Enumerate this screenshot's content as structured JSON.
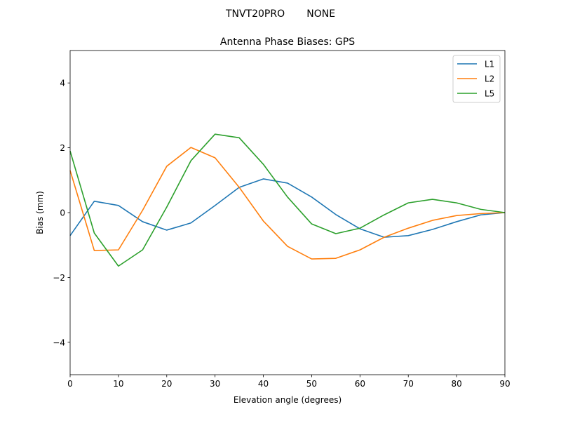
{
  "suptitle": "TNVT20PRO       NONE",
  "chart_data": {
    "type": "line",
    "title": "Antenna Phase Biases: GPS",
    "xlabel": "Elevation angle (degrees)",
    "ylabel": "Bias (mm)",
    "xlim": [
      0,
      90
    ],
    "ylim": [
      -5,
      5
    ],
    "xticks": [
      0,
      10,
      20,
      30,
      40,
      50,
      60,
      70,
      80,
      90
    ],
    "yticks": [
      -4,
      -2,
      0,
      2,
      4
    ],
    "ytick_labels": [
      "−4",
      "−2",
      "0",
      "2",
      "4"
    ],
    "grid": false,
    "legend_position": "top-right",
    "x": [
      0,
      5,
      10,
      15,
      20,
      25,
      30,
      35,
      40,
      45,
      50,
      55,
      60,
      65,
      70,
      75,
      80,
      85,
      90
    ],
    "series": [
      {
        "name": "L1",
        "color": "#1f77b4",
        "values": [
          -0.71,
          0.35,
          0.22,
          -0.28,
          -0.54,
          -0.32,
          0.22,
          0.78,
          1.04,
          0.91,
          0.48,
          -0.06,
          -0.5,
          -0.76,
          -0.71,
          -0.52,
          -0.28,
          -0.07,
          0
        ]
      },
      {
        "name": "L2",
        "color": "#ff7f0e",
        "values": [
          1.3,
          -1.17,
          -1.15,
          0.07,
          1.43,
          2.01,
          1.69,
          0.78,
          -0.26,
          -1.04,
          -1.43,
          -1.41,
          -1.15,
          -0.76,
          -0.48,
          -0.24,
          -0.09,
          -0.03,
          0
        ]
      },
      {
        "name": "L5",
        "color": "#2ca02c",
        "values": [
          1.9,
          -0.63,
          -1.65,
          -1.15,
          0.17,
          1.6,
          2.42,
          2.31,
          1.49,
          0.48,
          -0.35,
          -0.65,
          -0.48,
          -0.07,
          0.3,
          0.41,
          0.3,
          0.1,
          0
        ]
      }
    ]
  }
}
